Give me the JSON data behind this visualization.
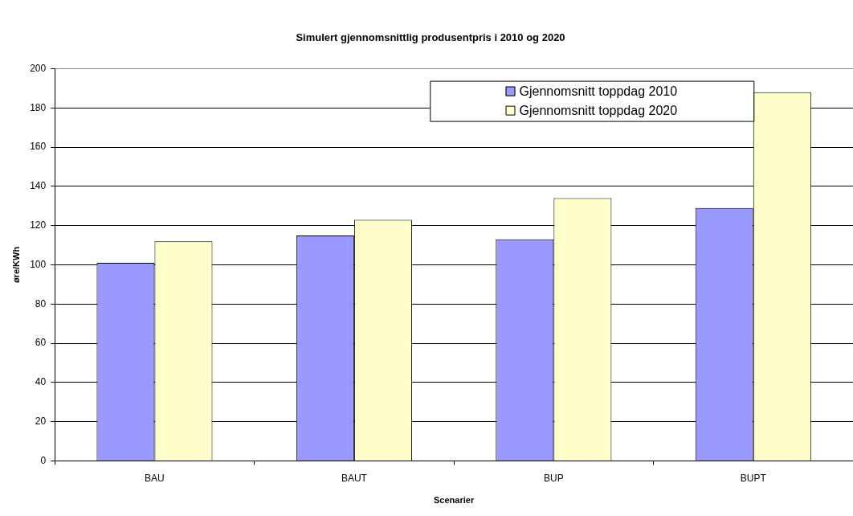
{
  "chart_data": {
    "type": "bar",
    "title": "Simulert gjennomsnittlig produsentpris i 2010 og 2020",
    "xlabel": "Scenarier",
    "ylabel": "øre/KWh",
    "categories": [
      "BAU",
      "BAUT",
      "BUP",
      "BUPT"
    ],
    "series": [
      {
        "name": "Gjennomsnitt toppdag 2010",
        "color": "#9999ff",
        "values": [
          101,
          115,
          113,
          129
        ]
      },
      {
        "name": "Gjennomsnitt toppdag 2020",
        "color": "#ffffcc",
        "values": [
          112,
          123,
          134,
          188
        ]
      }
    ],
    "ylim": [
      0,
      200
    ],
    "yticks": [
      0,
      20,
      40,
      60,
      80,
      100,
      120,
      140,
      160,
      180,
      200
    ],
    "grid": "y",
    "legend": "top right"
  }
}
